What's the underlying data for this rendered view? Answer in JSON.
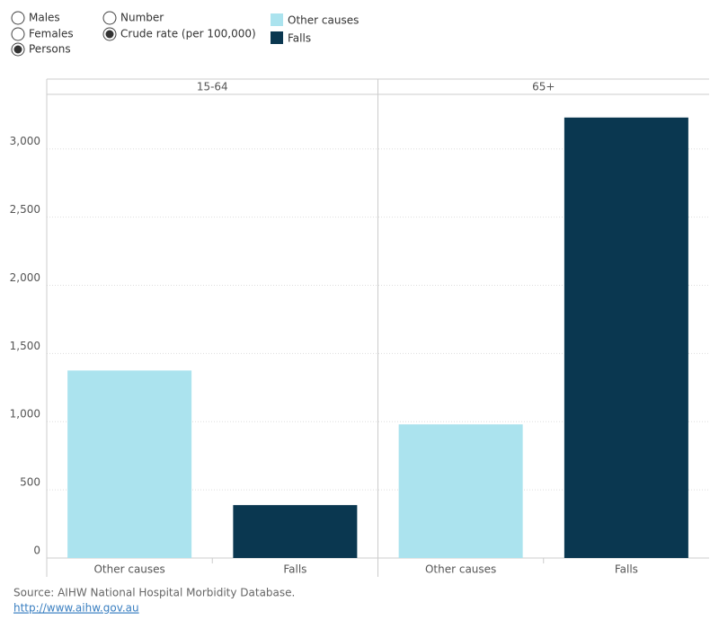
{
  "controls": [
    {
      "options": [
        "Males",
        "Females",
        "Persons"
      ],
      "selected": 2
    },
    {
      "options": [
        "Number",
        "Crude rate (per 100,000)"
      ],
      "selected": 1
    }
  ],
  "chart_data": {
    "type": "bar",
    "panels": [
      "15-64",
      "65+"
    ],
    "series": [
      {
        "name": "Other causes",
        "color": "#abe3ee",
        "values": [
          1375,
          980
        ]
      },
      {
        "name": "Falls",
        "color": "#0a3750",
        "values": [
          388,
          3230
        ]
      }
    ],
    "ylim": [
      0,
      3400
    ],
    "yticks": [
      0,
      500,
      {
        "value": 1000,
        "label": "1,000"
      },
      {
        "value": 1500,
        "label": "1,500"
      },
      {
        "value": 2000,
        "label": "2,000"
      },
      {
        "value": 2500,
        "label": "2,500"
      },
      {
        "value": 3000,
        "label": "3,000"
      }
    ],
    "grid": true
  },
  "footer": {
    "source": "Source: AIHW National Hospital Morbidity Database.",
    "link": "http://www.aihw.gov.au"
  }
}
